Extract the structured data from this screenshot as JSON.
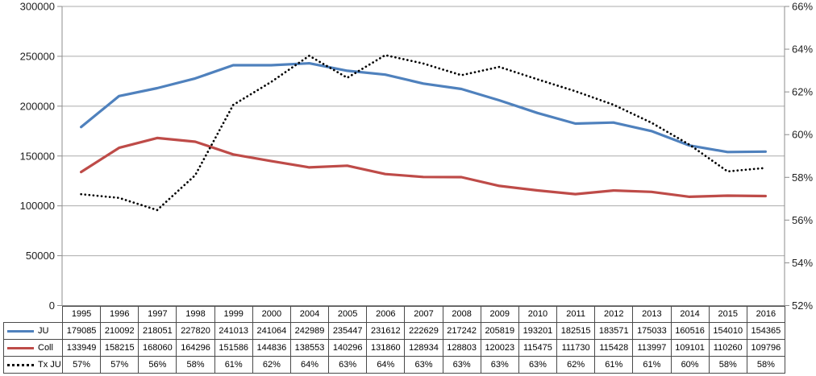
{
  "chart_data": {
    "type": "line",
    "title": "",
    "xlabel": "",
    "ylabel": "",
    "categories": [
      "1995",
      "1996",
      "1997",
      "1998",
      "1999",
      "2000",
      "2004",
      "2005",
      "2006",
      "2007",
      "2008",
      "2009",
      "2010",
      "2011",
      "2012",
      "2013",
      "2014",
      "2015",
      "2016"
    ],
    "series": [
      {
        "name": "JU",
        "axis": "left",
        "line_style": "solid",
        "color": "#4F81BD",
        "values": [
          179085,
          210092,
          218051,
          227820,
          241013,
          241064,
          242989,
          235447,
          231612,
          222629,
          217242,
          205819,
          193201,
          182515,
          183571,
          175033,
          160516,
          154010,
          154365
        ]
      },
      {
        "name": "Coll",
        "axis": "left",
        "line_style": "solid",
        "color": "#BE4B48",
        "values": [
          133949,
          158215,
          168060,
          164296,
          151586,
          144836,
          138553,
          140296,
          131860,
          128934,
          128803,
          120023,
          115475,
          111730,
          115428,
          113997,
          109101,
          110260,
          109796
        ]
      },
      {
        "name": "Tx JU",
        "axis": "right",
        "line_style": "dotted",
        "color": "#000000",
        "values": [
          57.21,
          57.04,
          56.47,
          58.1,
          61.39,
          62.47,
          63.69,
          62.66,
          63.72,
          63.33,
          62.78,
          63.17,
          62.59,
          62.03,
          61.4,
          60.56,
          59.53,
          58.28,
          58.44
        ],
        "display": [
          "57%",
          "57%",
          "56%",
          "58%",
          "61%",
          "62%",
          "64%",
          "63%",
          "64%",
          "63%",
          "63%",
          "63%",
          "63%",
          "62%",
          "61%",
          "61%",
          "60%",
          "58%",
          "58%"
        ]
      }
    ],
    "left_axis": {
      "min": 0,
      "max": 300000,
      "step": 50000,
      "tick_labels": [
        "300000",
        "250000",
        "200000",
        "150000",
        "100000",
        "50000",
        "0"
      ]
    },
    "right_axis": {
      "min": 52,
      "max": 66,
      "step": 2,
      "tick_labels": [
        "66%",
        "64%",
        "62%",
        "60%",
        "58%",
        "56%",
        "54%",
        "52%"
      ]
    },
    "grid": true,
    "legend_position": "data-table-left"
  },
  "colors": {
    "background": "#FFFFFF",
    "gridline": "#ABABAB",
    "axis_line": "#8C8C8C",
    "table_border": "#4A4A4A",
    "text": "#1F1F1F"
  }
}
